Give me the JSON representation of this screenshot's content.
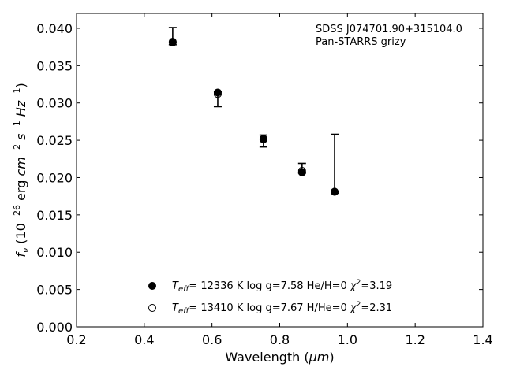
{
  "chart_data": {
    "type": "scatter",
    "annotation": [
      "SDSS J074701.90+315104.0",
      "Pan-STARRS grizy"
    ],
    "xlabel_prefix": "Wavelength (",
    "xlabel_unit": "μm",
    "xlabel_suffix": ")",
    "ylabel_f": "f",
    "ylabel_sub": "ν",
    "ylabel_pre": " (10",
    "ylabel_exp1": "−26",
    "ylabel_erg": " erg ",
    "ylabel_cm": "cm",
    "ylabel_exp2": "−2",
    "ylabel_s": "s",
    "ylabel_exp3": "−1",
    "ylabel_hz": "Hz",
    "ylabel_exp4": "−1",
    "ylabel_close": ")",
    "xlim": [
      0.2,
      1.4
    ],
    "ylim": [
      0.0,
      0.042
    ],
    "xticks": [
      0.2,
      0.4,
      0.6,
      0.8,
      1.0,
      1.2,
      1.4
    ],
    "xtick_labels": [
      "0.2",
      "0.4",
      "0.6",
      "0.8",
      "1.0",
      "1.2",
      "1.4"
    ],
    "yticks": [
      0.0,
      0.005,
      0.01,
      0.015,
      0.02,
      0.025,
      0.03,
      0.035,
      0.04
    ],
    "ytick_labels": [
      "0.000",
      "0.005",
      "0.010",
      "0.015",
      "0.020",
      "0.025",
      "0.030",
      "0.035",
      "0.040"
    ],
    "grid": false,
    "observed": {
      "x": [
        0.484,
        0.617,
        0.752,
        0.866,
        0.962
      ],
      "y": [
        0.0384,
        0.0312,
        0.0249,
        0.0209,
        0.018
      ],
      "yerr_low": [
        0.0378,
        0.0295,
        0.0241,
        0.0206,
        0.0179
      ],
      "yerr_high": [
        0.0401,
        0.0315,
        0.0257,
        0.0219,
        0.0258
      ]
    },
    "series": [
      {
        "marker": "filled",
        "color": "#000000",
        "x": [
          0.484,
          0.617,
          0.752,
          0.866,
          0.962
        ],
        "y": [
          0.0381,
          0.0314,
          0.0252,
          0.0207,
          0.0181
        ],
        "label_T": "T",
        "label_Tsub": "eff",
        "label_rest": "= 12336 K  log g=7.58  He/H=0  ",
        "label_chi": "χ",
        "label_chi_exp": "2",
        "label_chi_val": "=3.19"
      },
      {
        "marker": "open",
        "color": "#000000",
        "x": [
          0.484,
          0.617,
          0.752,
          0.866,
          0.962
        ],
        "y": [
          0.0382,
          0.0312,
          0.0251,
          0.0209,
          0.0181
        ],
        "label_T": "T",
        "label_Tsub": "eff",
        "label_rest": "= 13410 K  log g=7.67  H/He=0  ",
        "label_chi": "χ",
        "label_chi_exp": "2",
        "label_chi_val": "=2.31"
      }
    ],
    "legend_position": "lower-center"
  }
}
